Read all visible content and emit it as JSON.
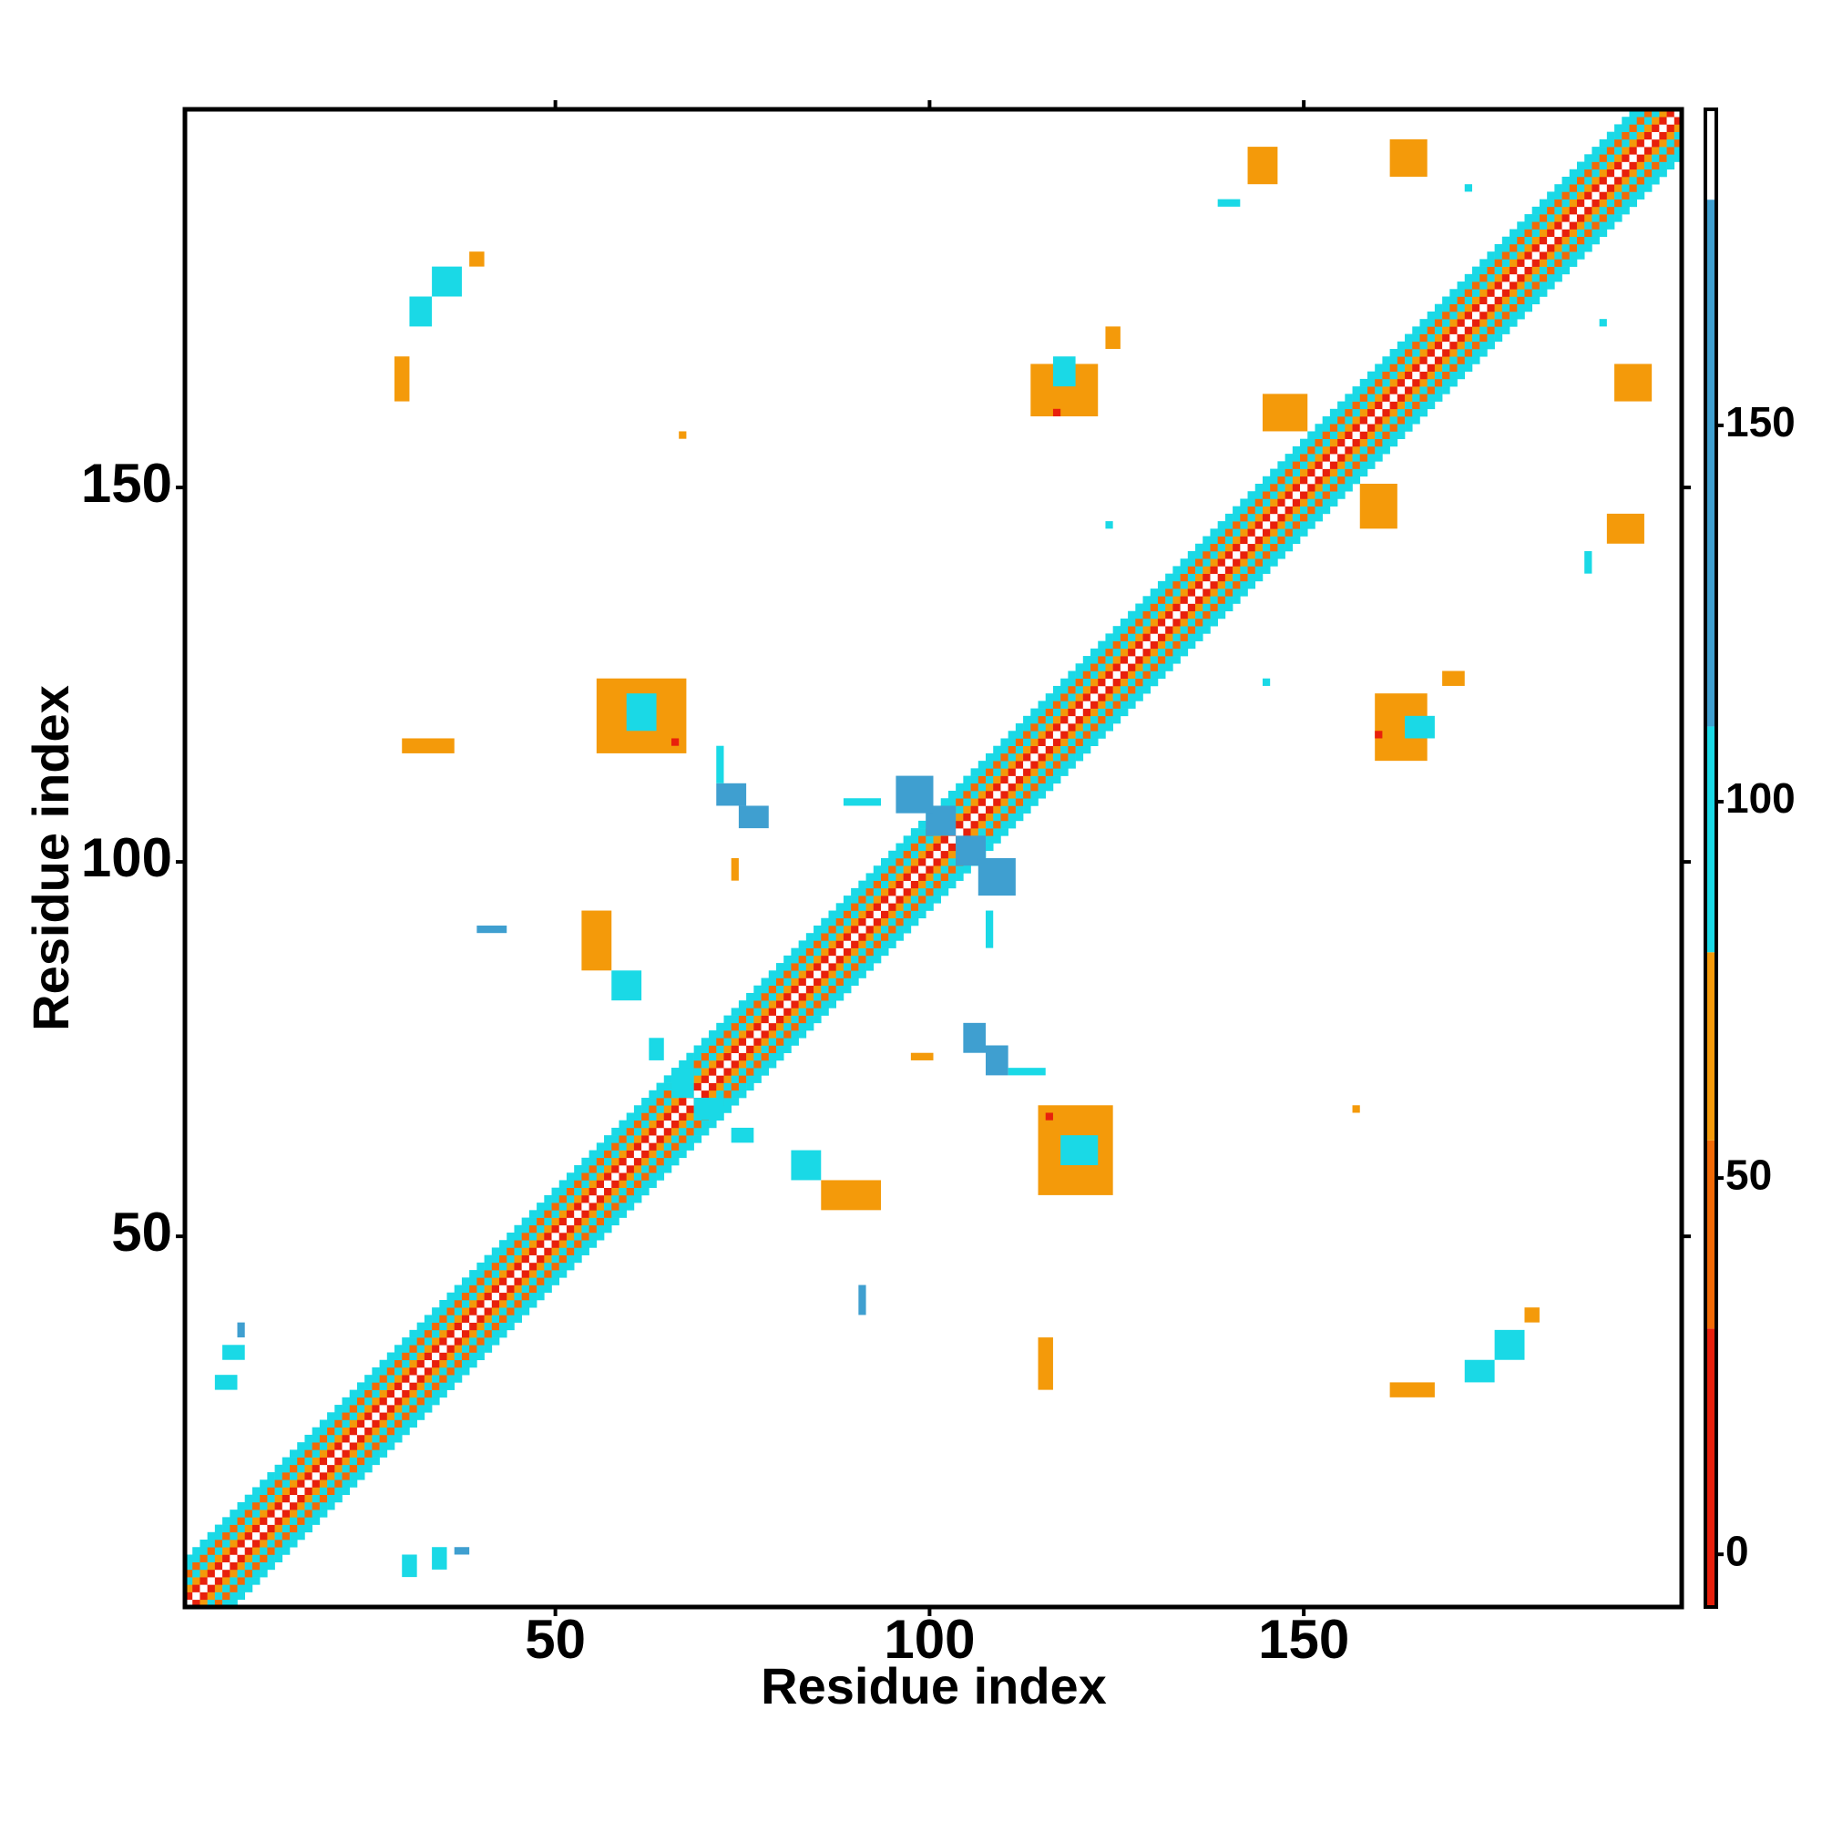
{
  "chart_data": {
    "type": "contact_map",
    "xlabel": "Residue index",
    "ylabel": "Residue index",
    "xlim": [
      0.5,
      200.5
    ],
    "ylim": [
      0.5,
      200.5
    ],
    "xticks": [
      50,
      100,
      150
    ],
    "yticks": [
      50,
      100,
      150
    ],
    "symmetric": true,
    "diagonal": {
      "from": 1,
      "to": 200,
      "offsets": [
        0,
        1,
        2,
        3,
        4,
        5,
        6
      ],
      "values": [
        185,
        10,
        65,
        95,
        40,
        95,
        95
      ]
    },
    "patches": [
      {
        "x": [
          157,
          157
        ],
        "y": [
          67,
          67
        ],
        "value": 65
      },
      {
        "x": [
          115,
          124
        ],
        "y": [
          56,
          67
        ],
        "value": 65
      },
      {
        "x": [
          118,
          122
        ],
        "y": [
          60,
          63
        ],
        "value": 95
      },
      {
        "x": [
          116,
          116
        ],
        "y": [
          66,
          66
        ],
        "value": 10
      },
      {
        "x": [
          105,
          107
        ],
        "y": [
          75,
          78
        ],
        "value": 140
      },
      {
        "x": [
          108,
          110
        ],
        "y": [
          72,
          75
        ],
        "value": 140
      },
      {
        "x": [
          111,
          115
        ],
        "y": [
          72,
          72
        ],
        "value": 95
      },
      {
        "x": [
          98,
          100
        ],
        "y": [
          74,
          74
        ],
        "value": 65
      },
      {
        "x": [
          115,
          116
        ],
        "y": [
          30,
          36
        ],
        "value": 65
      },
      {
        "x": [
          91,
          91
        ],
        "y": [
          40,
          43
        ],
        "value": 140
      },
      {
        "x": [
          162,
          167
        ],
        "y": [
          29,
          30
        ],
        "value": 65
      },
      {
        "x": [
          172,
          175
        ],
        "y": [
          31,
          33
        ],
        "value": 95
      },
      {
        "x": [
          176,
          179
        ],
        "y": [
          34,
          37
        ],
        "value": 95
      },
      {
        "x": [
          180,
          181
        ],
        "y": [
          39,
          40
        ],
        "value": 65
      },
      {
        "x": [
          104,
          107
        ],
        "y": [
          100,
          103
        ],
        "value": 140
      },
      {
        "x": [
          107,
          111
        ],
        "y": [
          96,
          100
        ],
        "value": 140
      },
      {
        "x": [
          69,
          72
        ],
        "y": [
          66,
          68
        ],
        "value": 95
      },
      {
        "x": [
          74,
          76
        ],
        "y": [
          63,
          64
        ],
        "value": 95
      },
      {
        "x": [
          82,
          85
        ],
        "y": [
          58,
          61
        ],
        "value": 95
      },
      {
        "x": [
          86,
          93
        ],
        "y": [
          54,
          57
        ],
        "value": 65
      },
      {
        "x": [
          188,
          188
        ],
        "y": [
          139,
          141
        ],
        "value": 95
      },
      {
        "x": [
          191,
          195
        ],
        "y": [
          143,
          146
        ],
        "value": 65
      },
      {
        "x": [
          192,
          196
        ],
        "y": [
          162,
          166
        ],
        "value": 65
      },
      {
        "x": [
          190,
          190
        ],
        "y": [
          172,
          172
        ],
        "value": 95
      },
      {
        "x": [
          158,
          162
        ],
        "y": [
          145,
          150
        ],
        "value": 65
      },
      {
        "x": [
          160,
          166
        ],
        "y": [
          114,
          122
        ],
        "value": 65
      },
      {
        "x": [
          164,
          167
        ],
        "y": [
          117,
          119
        ],
        "value": 95
      },
      {
        "x": [
          169,
          171
        ],
        "y": [
          124,
          125
        ],
        "value": 65
      },
      {
        "x": [
          160,
          160
        ],
        "y": [
          117,
          117
        ],
        "value": 10
      },
      {
        "x": [
          108,
          108
        ],
        "y": [
          89,
          93
        ],
        "value": 95
      },
      {
        "x": [
          30,
          31
        ],
        "y": [
          5,
          7
        ],
        "value": 95
      },
      {
        "x": [
          34,
          35
        ],
        "y": [
          6,
          8
        ],
        "value": 95
      },
      {
        "x": [
          37,
          38
        ],
        "y": [
          8,
          8
        ],
        "value": 140
      },
      {
        "x": [
          145,
          145
        ],
        "y": [
          124,
          124
        ],
        "value": 95
      }
    ],
    "colorbar": {
      "lim": [
        -7,
        192
      ],
      "ticks": [
        0,
        50,
        100,
        150
      ],
      "bins": [
        {
          "from": -7,
          "to": 30,
          "color": "#e8200c"
        },
        {
          "from": 30,
          "to": 55,
          "color": "#f26a06"
        },
        {
          "from": 55,
          "to": 80,
          "color": "#f49a0a"
        },
        {
          "from": 80,
          "to": 110,
          "color": "#1ad9e6"
        },
        {
          "from": 110,
          "to": 180,
          "color": "#3f9fd0"
        },
        {
          "from": 180,
          "to": 192,
          "color": "#ffffff"
        }
      ]
    }
  }
}
